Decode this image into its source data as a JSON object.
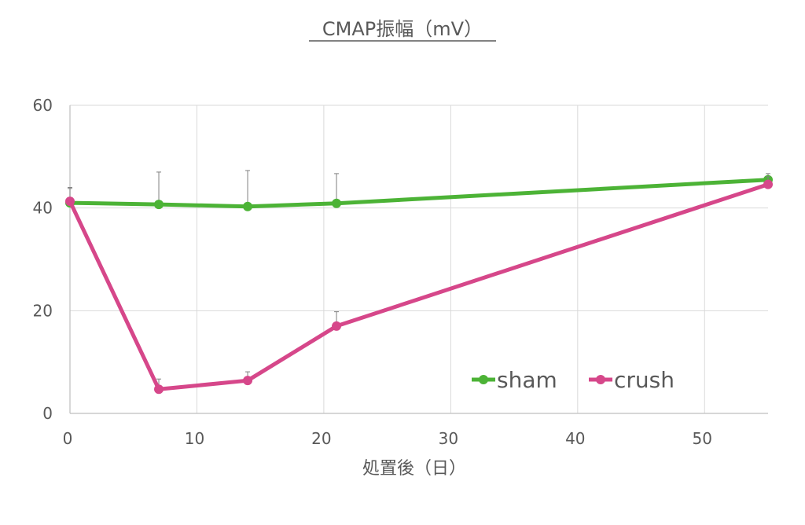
{
  "chart_data": {
    "type": "line",
    "title": "CMAP振幅（mV）",
    "xlabel": "処置後（日）",
    "ylabel": "",
    "xlim": [
      0,
      55
    ],
    "ylim": [
      0,
      60
    ],
    "xticks": [
      "0",
      "10",
      "20",
      "30",
      "40",
      "50"
    ],
    "yticks": [
      "0",
      "20",
      "40",
      "60"
    ],
    "grid": true,
    "legend_position": "bottom-right",
    "series": [
      {
        "name": "sham",
        "color": "#4CB336",
        "x": [
          0,
          7,
          14,
          21,
          55
        ],
        "y": [
          41,
          40.7,
          40.3,
          40.9,
          45.5
        ],
        "error_upper": [
          3,
          6.3,
          7,
          5.8,
          1.2
        ]
      },
      {
        "name": "crush",
        "color": "#D6478A",
        "x": [
          0,
          7,
          14,
          21,
          55
        ],
        "y": [
          41.3,
          4.7,
          6.4,
          17,
          44.6
        ],
        "error_upper": [
          2.5,
          2,
          1.7,
          2.8,
          1.5
        ]
      }
    ]
  }
}
